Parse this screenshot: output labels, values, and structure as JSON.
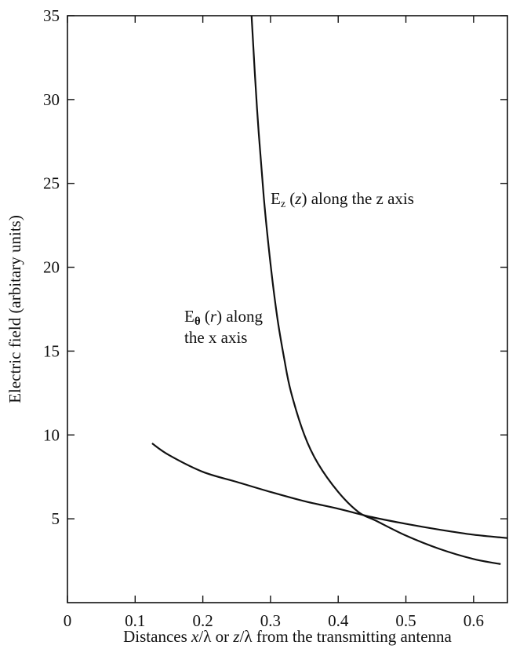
{
  "chart_data": {
    "type": "line",
    "title": "",
    "xlabel": {
      "prefix": "Distances ",
      "var1": "x",
      "mid": "/λ or ",
      "var2": "z",
      "suffix": "/λ from the transmitting antenna"
    },
    "ylabel": "Electric field (arbitary units)",
    "xlim": [
      0,
      0.65
    ],
    "ylim": [
      0,
      35
    ],
    "xticks": [
      "0",
      "0.1",
      "0.2",
      "0.3",
      "0.4",
      "0.5",
      "0.6"
    ],
    "xtick_values": [
      0,
      0.1,
      0.2,
      0.3,
      0.4,
      0.5,
      0.6
    ],
    "yticks": [
      "5",
      "10",
      "15",
      "20",
      "25",
      "30",
      "35"
    ],
    "ytick_values": [
      5,
      10,
      15,
      20,
      25,
      30,
      35
    ],
    "grid": false,
    "series": [
      {
        "id": "Ez",
        "x": [
          0.272,
          0.28,
          0.29,
          0.3,
          0.31,
          0.32,
          0.33,
          0.35,
          0.37,
          0.4,
          0.43,
          0.455,
          0.5,
          0.55,
          0.6,
          0.64
        ],
        "y": [
          35,
          29.5,
          24.2,
          20.2,
          17.0,
          14.6,
          12.6,
          10.0,
          8.3,
          6.6,
          5.4,
          4.9,
          4.0,
          3.2,
          2.6,
          2.3
        ],
        "annotation": {
          "main": "E",
          "sub": "z",
          "arg": "(z)",
          "rest": " along the z axis"
        }
      },
      {
        "id": "Etheta",
        "x": [
          0.125,
          0.15,
          0.2,
          0.25,
          0.3,
          0.35,
          0.4,
          0.45,
          0.5,
          0.55,
          0.6,
          0.65
        ],
        "y": [
          9.5,
          8.8,
          7.8,
          7.2,
          6.6,
          6.05,
          5.6,
          5.1,
          4.7,
          4.35,
          4.05,
          3.85
        ],
        "annotation": {
          "main": "E",
          "sub": "θ",
          "arg": "(r)",
          "rest": " along",
          "line2": "the x axis"
        }
      }
    ]
  }
}
